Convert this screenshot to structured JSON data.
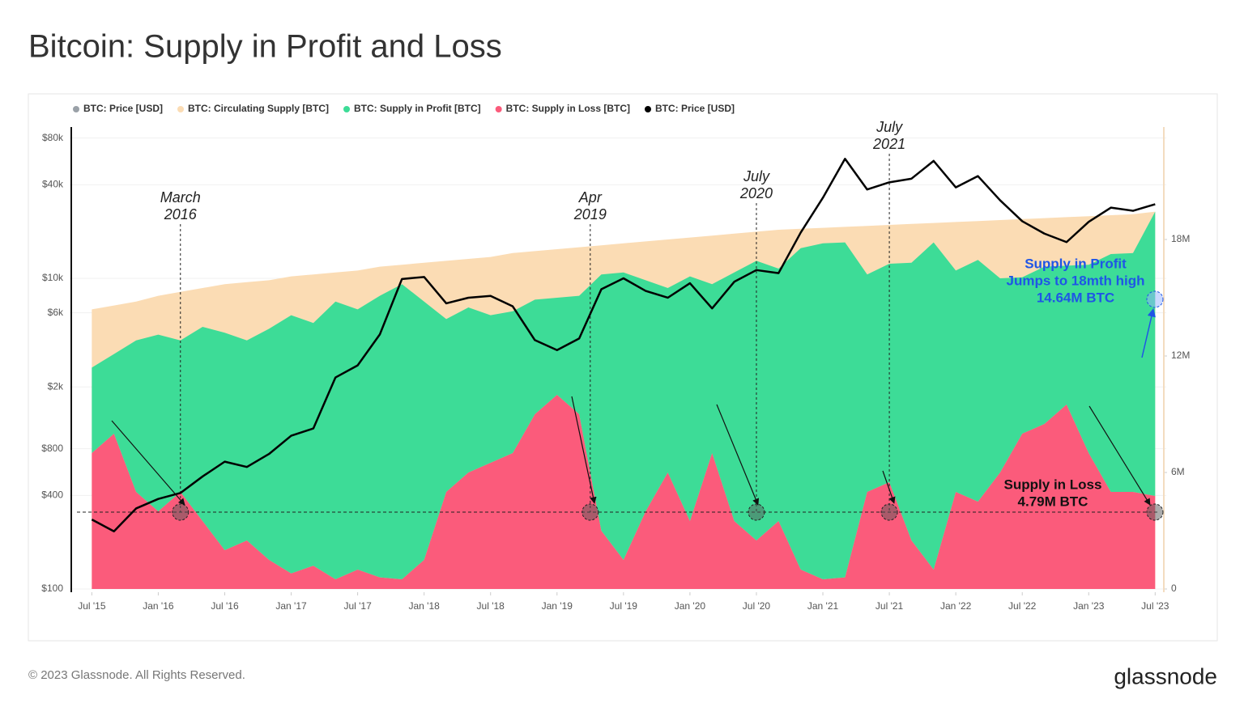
{
  "title": "Bitcoin: Supply in Profit and Loss",
  "chart_data": {
    "type": "stacked-area-line",
    "legend_hidden": [
      {
        "name": "BTC: Price [USD]",
        "color": "#9aa1a8"
      }
    ],
    "x": [
      "2015-07",
      "2015-09",
      "2015-11",
      "2016-01",
      "2016-03",
      "2016-05",
      "2016-07",
      "2016-09",
      "2016-11",
      "2017-01",
      "2017-03",
      "2017-05",
      "2017-07",
      "2017-09",
      "2017-11",
      "2018-01",
      "2018-03",
      "2018-05",
      "2018-07",
      "2018-09",
      "2018-11",
      "2019-01",
      "2019-03",
      "2019-05",
      "2019-07",
      "2019-09",
      "2019-11",
      "2020-01",
      "2020-03",
      "2020-05",
      "2020-07",
      "2020-09",
      "2020-11",
      "2021-01",
      "2021-03",
      "2021-05",
      "2021-07",
      "2021-09",
      "2021-11",
      "2022-01",
      "2022-03",
      "2022-05",
      "2022-07",
      "2022-09",
      "2022-11",
      "2023-01",
      "2023-03",
      "2023-05",
      "2023-07"
    ],
    "xlim": [
      "2015-05",
      "2023-08"
    ],
    "xticks": [
      {
        "value": "2015-07",
        "label": "Jul '15"
      },
      {
        "value": "2016-01",
        "label": "Jan '16"
      },
      {
        "value": "2016-07",
        "label": "Jul '16"
      },
      {
        "value": "2017-01",
        "label": "Jan '17"
      },
      {
        "value": "2017-07",
        "label": "Jul '17"
      },
      {
        "value": "2018-01",
        "label": "Jan '18"
      },
      {
        "value": "2018-07",
        "label": "Jul '18"
      },
      {
        "value": "2019-01",
        "label": "Jan '19"
      },
      {
        "value": "2019-07",
        "label": "Jul '19"
      },
      {
        "value": "2020-01",
        "label": "Jan '20"
      },
      {
        "value": "2020-07",
        "label": "Jul '20"
      },
      {
        "value": "2021-01",
        "label": "Jan '21"
      },
      {
        "value": "2021-07",
        "label": "Jul '21"
      },
      {
        "value": "2022-01",
        "label": "Jan '22"
      },
      {
        "value": "2022-07",
        "label": "Jul '22"
      },
      {
        "value": "2023-01",
        "label": "Jan '23"
      },
      {
        "value": "2023-07",
        "label": "Jul '23"
      }
    ],
    "ylim": [
      100,
      100000
    ],
    "log_y": true,
    "grid": true,
    "yticks": [
      {
        "value": 100,
        "label": "$100"
      },
      {
        "value": 400,
        "label": "$400"
      },
      {
        "value": 800,
        "label": "$800"
      },
      {
        "value": 2000,
        "label": "$2k"
      },
      {
        "value": 6000,
        "label": "$6k"
      },
      {
        "value": 10000,
        "label": "$10k"
      },
      {
        "value": 40000,
        "label": "$40k"
      },
      {
        "value": 80000,
        "label": "$80k"
      }
    ],
    "y2lim": [
      0,
      24000000
    ],
    "y2ticks": [
      0,
      {
        "value": 6000000,
        "label": "6M"
      },
      {
        "value": 12000000,
        "label": "12M"
      },
      {
        "value": 18000000,
        "label": "18M"
      }
    ],
    "series": [
      {
        "name": "BTC: Circulating Supply [BTC]",
        "color": "#fbdcb4",
        "axis": "y2",
        "kind": "area",
        "values": [
          14400000,
          14600000,
          14800000,
          15100000,
          15300000,
          15500000,
          15700000,
          15800000,
          15900000,
          16100000,
          16200000,
          16300000,
          16400000,
          16600000,
          16700000,
          16800000,
          16900000,
          17000000,
          17100000,
          17300000,
          17400000,
          17500000,
          17600000,
          17700000,
          17800000,
          17900000,
          18000000,
          18100000,
          18200000,
          18300000,
          18400000,
          18500000,
          18550000,
          18600000,
          18650000,
          18700000,
          18750000,
          18800000,
          18850000,
          18900000,
          18950000,
          19000000,
          19050000,
          19100000,
          19150000,
          19200000,
          19250000,
          19300000,
          19430000
        ]
      },
      {
        "name": "BTC: Supply in Profit [BTC]",
        "color": "#3ddc97",
        "axis": "y2",
        "kind": "stack",
        "values": [
          4400000,
          4100000,
          7800000,
          9100000,
          7800000,
          10000000,
          11200000,
          10300000,
          11900000,
          13300000,
          12500000,
          14300000,
          13400000,
          14500000,
          15200000,
          13300000,
          8900000,
          8500000,
          7600000,
          7300000,
          5900000,
          5000000,
          6100000,
          13200000,
          14800000,
          11900000,
          9500000,
          12600000,
          8700000,
          12800000,
          14400000,
          13000000,
          16550000,
          17300000,
          17250000,
          11200000,
          11250000,
          14300000,
          16850000,
          11400000,
          12450000,
          10000000,
          8050000,
          8100000,
          7150000,
          9700000,
          12250000,
          12300000,
          14640000
        ]
      },
      {
        "name": "BTC: Supply in Loss [BTC]",
        "color": "#fb5b7b",
        "axis": "y2",
        "kind": "stack",
        "values": [
          7000000,
          8000000,
          5000000,
          4000000,
          5000000,
          3500000,
          2000000,
          2500000,
          1500000,
          800000,
          1200000,
          500000,
          1000000,
          600000,
          500000,
          1500000,
          5000000,
          6000000,
          6500000,
          7000000,
          9000000,
          10000000,
          9000000,
          3000000,
          1500000,
          4000000,
          6000000,
          3500000,
          7000000,
          3500000,
          2500000,
          3500000,
          1000000,
          500000,
          600000,
          5000000,
          5500000,
          2500000,
          1000000,
          5000000,
          4500000,
          6000000,
          8000000,
          8500000,
          9500000,
          7000000,
          5000000,
          5000000,
          4790000
        ]
      },
      {
        "name": "BTC: Price [USD]",
        "color": "#000000",
        "axis": "y",
        "kind": "line",
        "values": [
          280,
          235,
          330,
          380,
          415,
          530,
          660,
          610,
          740,
          970,
          1080,
          2300,
          2750,
          4350,
          9900,
          10200,
          6900,
          7500,
          7700,
          6600,
          4000,
          3450,
          4100,
          8500,
          10000,
          8300,
          7500,
          9300,
          6400,
          9500,
          11300,
          10800,
          19700,
          33000,
          58800,
          37300,
          41500,
          43800,
          57000,
          38500,
          45500,
          31800,
          23300,
          19400,
          17100,
          23100,
          28500,
          27200,
          30000
        ]
      }
    ],
    "annotations": [
      {
        "lines": [
          "March",
          "2016"
        ],
        "x": "2016-03"
      },
      {
        "lines": [
          "Apr",
          "2019"
        ],
        "x": "2019-04"
      },
      {
        "lines": [
          "July",
          "2020"
        ],
        "x": "2020-07"
      },
      {
        "lines": [
          "July",
          "2021"
        ],
        "x": "2021-07"
      }
    ],
    "callout_profit": {
      "lines": [
        "Supply in Profit",
        "Jumps to 18mth high",
        "14.64M BTC"
      ],
      "color": "#1f55e6"
    },
    "callout_loss": {
      "lines": [
        "Supply in Loss",
        "4.79M BTC"
      ]
    }
  },
  "footer": {
    "copyright": "© 2023 Glassnode. All Rights Reserved.",
    "logo": "glassnode"
  }
}
